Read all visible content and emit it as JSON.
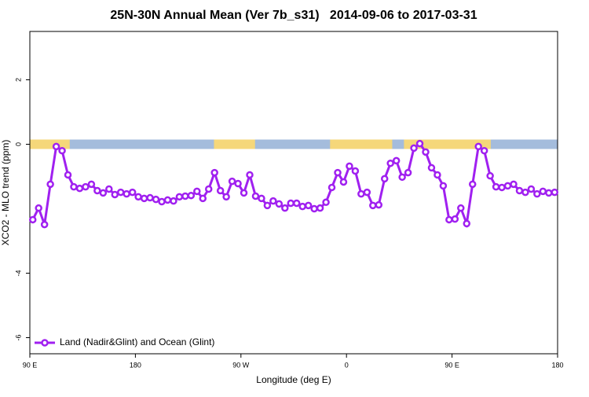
{
  "chart_data": {
    "type": "line",
    "title": "25N-30N Annual Mean (Ver 7b_s31)   2014-09-06 to 2017-03-31",
    "x_label": "Longitude (deg E)",
    "y_label": "XCO2 - MLO trend (ppm)",
    "xlim": [
      90,
      540
    ],
    "ylim": [
      -6.5,
      3.5
    ],
    "xticks": [
      {
        "value": 90,
        "label": "90 E"
      },
      180,
      {
        "value": 270,
        "label": "90 W"
      },
      {
        "value": 360,
        "label": "0"
      },
      {
        "value": 450,
        "label": "90 E"
      },
      {
        "value": 540,
        "label": "180"
      }
    ],
    "yticks": [
      -6,
      -4,
      0,
      2
    ],
    "grid": false,
    "legend": "bottom-left",
    "surface_strip": {
      "ocean_color": "#a4bcdc",
      "land_color": "#f5d77a",
      "land_segments": [
        [
          90,
          124
        ],
        [
          247,
          282
        ],
        [
          346,
          399
        ],
        [
          409,
          483
        ]
      ]
    },
    "x": [
      92.5,
      97.5,
      102.5,
      107.5,
      112.5,
      117.5,
      122.5,
      127.5,
      132.5,
      137.5,
      142.5,
      147.5,
      152.5,
      157.5,
      162.5,
      167.5,
      172.5,
      177.5,
      182.5,
      187.5,
      192.5,
      197.5,
      202.5,
      207.5,
      212.5,
      217.5,
      222.5,
      227.5,
      232.5,
      237.5,
      242.5,
      247.5,
      252.5,
      257.5,
      262.5,
      267.5,
      272.5,
      277.5,
      282.5,
      287.5,
      292.5,
      297.5,
      302.5,
      307.5,
      312.5,
      317.5,
      322.5,
      327.5,
      332.5,
      337.5,
      342.5,
      347.5,
      352.5,
      357.5,
      362.5,
      367.5,
      372.5,
      377.5,
      382.5,
      387.5,
      392.5,
      397.5,
      402.5,
      407.5,
      412.5,
      417.5,
      422.5,
      427.5,
      432.5,
      437.5,
      442.5,
      447.5,
      452.5,
      457.5,
      462.5,
      467.5,
      472.5,
      477.5,
      482.5,
      487.5,
      492.5,
      497.5,
      502.5,
      507.5,
      512.5,
      517.5,
      522.5,
      527.5,
      532.5,
      537.5
    ],
    "series": [
      {
        "name": "Land (Nadir&Glint) and Ocean (Glint)",
        "color": "#a020f0",
        "values": [
          -2.34,
          -1.98,
          -2.49,
          -1.24,
          -0.07,
          -0.2,
          -0.95,
          -1.32,
          -1.37,
          -1.32,
          -1.24,
          -1.44,
          -1.51,
          -1.39,
          -1.56,
          -1.49,
          -1.54,
          -1.49,
          -1.63,
          -1.68,
          -1.66,
          -1.71,
          -1.78,
          -1.73,
          -1.76,
          -1.63,
          -1.61,
          -1.59,
          -1.46,
          -1.68,
          -1.39,
          -0.88,
          -1.44,
          -1.63,
          -1.15,
          -1.22,
          -1.51,
          -0.95,
          -1.61,
          -1.68,
          -1.9,
          -1.76,
          -1.85,
          -1.98,
          -1.83,
          -1.83,
          -1.93,
          -1.9,
          -2.0,
          -1.98,
          -1.8,
          -1.34,
          -0.88,
          -1.17,
          -0.68,
          -0.83,
          -1.54,
          -1.49,
          -1.9,
          -1.88,
          -1.07,
          -0.59,
          -0.51,
          -1.02,
          -0.88,
          -0.12,
          0.02,
          -0.24,
          -0.73,
          -0.95,
          -1.29,
          -2.34,
          -2.32,
          -1.98,
          -2.46,
          -1.24,
          -0.07,
          -0.2,
          -0.98,
          -1.32,
          -1.34,
          -1.29,
          -1.24,
          -1.44,
          -1.49,
          -1.39,
          -1.54,
          -1.46,
          -1.51,
          -1.49
        ]
      }
    ]
  }
}
